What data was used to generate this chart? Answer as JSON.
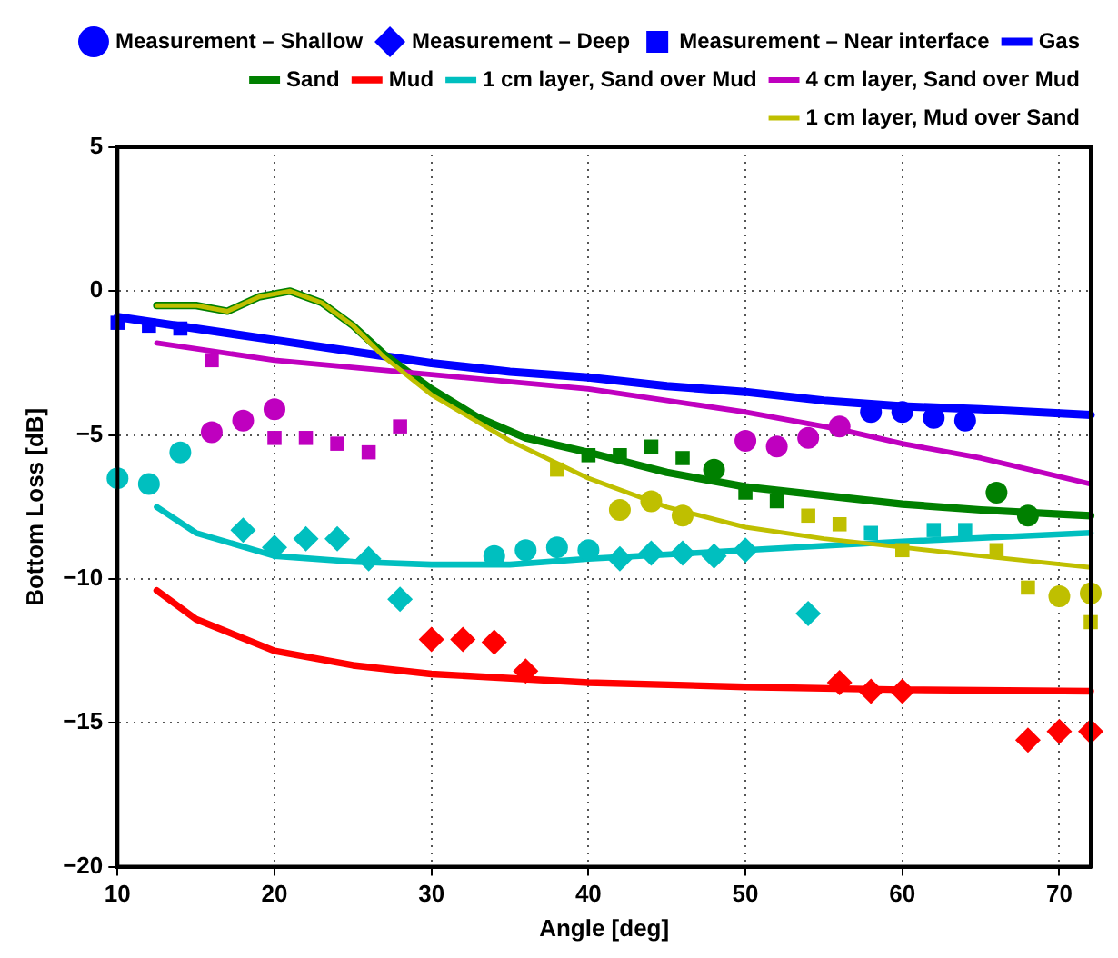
{
  "chart_data": {
    "type": "scatter",
    "xlabel": "Angle [deg]",
    "ylabel": "Bottom Loss [dB]",
    "xlim": [
      10,
      72
    ],
    "ylim": [
      -20,
      5
    ],
    "xticks": [
      10,
      20,
      30,
      40,
      50,
      60,
      70
    ],
    "yticks": [
      -20,
      -15,
      -10,
      -5,
      0,
      5
    ],
    "grid": true,
    "legend": "top right",
    "series": [
      {
        "name": "Measurement – Shallow",
        "color": "#0000ff",
        "marker": "circle",
        "x": [
          58,
          60,
          62,
          64
        ],
        "values": [
          -4.2,
          -4.2,
          -4.4,
          -4.5
        ]
      },
      {
        "name": "Measurement – Deep",
        "color": "#0000ff",
        "marker": "diamond"
      },
      {
        "name": "Measurement – Near interface",
        "color": "#0000ff",
        "marker": "square",
        "x": [
          10,
          12,
          14
        ],
        "values": [
          -1.1,
          -1.2,
          -1.3
        ]
      },
      {
        "name": "Gas",
        "type": "line",
        "marker": "none",
        "color": "#0000ff",
        "x": [
          10,
          15,
          20,
          25,
          30,
          35,
          40,
          45,
          50,
          55,
          60,
          65,
          72
        ],
        "values": [
          -0.9,
          -1.3,
          -1.7,
          -2.1,
          -2.5,
          -2.8,
          -3.0,
          -3.3,
          -3.5,
          -3.8,
          -4.0,
          -4.1,
          -4.3
        ]
      },
      {
        "name": "Sand",
        "type": "line",
        "marker": "none",
        "color": "#008000",
        "x": [
          12.5,
          15,
          17,
          19,
          21,
          23,
          25,
          27,
          30,
          33,
          36,
          40,
          45,
          50,
          55,
          60,
          65,
          70,
          72
        ],
        "values": [
          -0.5,
          -0.5,
          -0.7,
          -0.2,
          0,
          -0.4,
          -1.2,
          -2.2,
          -3.4,
          -4.4,
          -5.1,
          -5.6,
          -6.3,
          -6.8,
          -7.1,
          -7.4,
          -7.6,
          -7.75,
          -7.8
        ]
      },
      {
        "name": "Mud",
        "type": "line",
        "marker": "none",
        "color": "#ff0000",
        "x": [
          12.5,
          15,
          20,
          25,
          30,
          40,
          50,
          60,
          72
        ],
        "values": [
          -10.4,
          -11.4,
          -12.5,
          -13.0,
          -13.3,
          -13.6,
          -13.75,
          -13.85,
          -13.9
        ]
      },
      {
        "name": "1 cm layer, Sand over Mud",
        "type": "line",
        "marker": "none",
        "color": "#00bfbf",
        "x": [
          12.5,
          15,
          20,
          25,
          30,
          35,
          40,
          50,
          60,
          72
        ],
        "values": [
          -7.5,
          -8.4,
          -9.2,
          -9.4,
          -9.5,
          -9.5,
          -9.3,
          -9.0,
          -8.7,
          -8.4
        ]
      },
      {
        "name": "4 cm layer, Sand over Mud",
        "type": "line",
        "marker": "none",
        "color": "#bf00bf",
        "x": [
          12.5,
          20,
          30,
          40,
          50,
          56,
          60,
          65,
          72
        ],
        "values": [
          -1.8,
          -2.4,
          -2.9,
          -3.4,
          -4.2,
          -4.8,
          -5.3,
          -5.8,
          -6.7
        ]
      },
      {
        "name": "1 cm layer, Mud over Sand",
        "type": "line",
        "marker": "none",
        "color": "#bfbf00",
        "x": [
          12.5,
          15,
          17,
          19,
          21,
          23,
          25,
          27,
          30,
          35,
          40,
          45,
          50,
          55,
          60,
          65,
          72
        ],
        "values": [
          -0.5,
          -0.5,
          -0.7,
          -0.2,
          0,
          -0.4,
          -1.2,
          -2.3,
          -3.6,
          -5.2,
          -6.5,
          -7.5,
          -8.2,
          -8.6,
          -8.9,
          -9.2,
          -9.6
        ]
      },
      {
        "color": "#00bfbf",
        "marker": "circle",
        "x": [
          10,
          12,
          14,
          34,
          36,
          38,
          40
        ],
        "values": [
          -6.5,
          -6.7,
          -5.6,
          -9.2,
          -9.0,
          -8.9,
          -9.0
        ]
      },
      {
        "color": "#bf00bf",
        "marker": "circle",
        "x": [
          16,
          18,
          20,
          50,
          52,
          54,
          56
        ],
        "values": [
          -4.9,
          -4.5,
          -4.1,
          -5.2,
          -5.4,
          -5.1,
          -4.7
        ]
      },
      {
        "color": "#008000",
        "marker": "circle",
        "x": [
          48,
          66,
          68
        ],
        "values": [
          -6.2,
          -7.0,
          -7.8
        ]
      },
      {
        "color": "#bfbf00",
        "marker": "circle",
        "x": [
          42,
          44,
          46,
          70,
          72
        ],
        "values": [
          -7.6,
          -7.3,
          -7.8,
          -10.6,
          -10.5
        ]
      },
      {
        "color": "#00bfbf",
        "marker": "diamond",
        "x": [
          18,
          20,
          22,
          24,
          26,
          28,
          42,
          44,
          46,
          48,
          50,
          54
        ],
        "values": [
          -8.3,
          -8.9,
          -8.6,
          -8.6,
          -9.3,
          -10.7,
          -9.3,
          -9.1,
          -9.1,
          -9.2,
          -9.0,
          -11.2
        ]
      },
      {
        "color": "#ff0000",
        "marker": "diamond",
        "x": [
          30,
          32,
          34,
          36,
          56,
          58,
          60,
          68,
          70,
          72
        ],
        "values": [
          -12.1,
          -12.1,
          -12.2,
          -13.2,
          -13.6,
          -13.9,
          -13.9,
          -15.6,
          -15.3,
          -15.3
        ]
      },
      {
        "color": "#bf00bf",
        "marker": "square",
        "x": [
          16,
          20,
          22,
          24,
          26,
          28
        ],
        "values": [
          -2.4,
          -5.1,
          -5.1,
          -5.3,
          -5.6,
          -4.7
        ]
      },
      {
        "color": "#008000",
        "marker": "square",
        "x": [
          40,
          42,
          44,
          46,
          50,
          52
        ],
        "values": [
          -5.7,
          -5.7,
          -5.4,
          -5.8,
          -7.0,
          -7.3
        ]
      },
      {
        "color": "#bfbf00",
        "marker": "square",
        "x": [
          38,
          54,
          56,
          60,
          66,
          68,
          72
        ],
        "values": [
          -6.2,
          -7.8,
          -8.1,
          -9.0,
          -9.0,
          -10.3,
          -11.5
        ]
      },
      {
        "color": "#00bfbf",
        "marker": "square",
        "x": [
          58,
          62,
          64
        ],
        "values": [
          -8.4,
          -8.3,
          -8.3
        ]
      }
    ]
  }
}
